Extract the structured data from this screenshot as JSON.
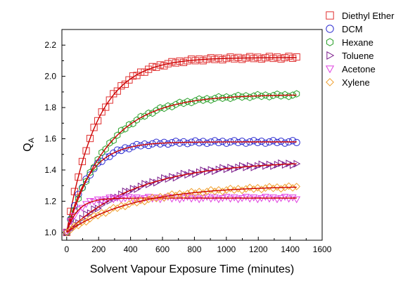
{
  "chart_data": {
    "type": "scatter",
    "xlabel": "Solvent Vapour Exposure Time (minutes)",
    "ylabel": "Q",
    "ylabel_sub": "A",
    "xlim": [
      -30,
      1600
    ],
    "ylim": [
      0.95,
      2.3
    ],
    "x_ticks": [
      0,
      200,
      400,
      600,
      800,
      1000,
      1200,
      1400,
      1600
    ],
    "y_ticks": [
      1.0,
      1.2,
      1.4,
      1.6,
      1.8,
      2.0,
      2.2
    ],
    "x_tick_labels": [
      "0",
      "200",
      "400",
      "600",
      "800",
      "1000",
      "1200",
      "1400",
      "1600"
    ],
    "y_tick_labels": [
      "1.0",
      "1.2",
      "1.4",
      "1.6",
      "1.8",
      "2.0",
      "2.2"
    ],
    "grid": false,
    "legend_position": "top-right-outside",
    "fit_color": "#cc0000",
    "series": [
      {
        "name": "Diethyl Ether",
        "marker": "square",
        "color": "#e03030",
        "y_end": 2.12,
        "tau": 190
      },
      {
        "name": "DCM",
        "marker": "circle",
        "color": "#2a2ad0",
        "y_end": 1.58,
        "tau": 140
      },
      {
        "name": "Hexane",
        "marker": "hexagon",
        "color": "#2aa02a",
        "y_end": 1.88,
        "tau": 260
      },
      {
        "name": "Toluene",
        "marker": "triangle-right",
        "color": "#7a1a8a",
        "y_end": 1.44,
        "tau": 450
      },
      {
        "name": "Acetone",
        "marker": "triangle-down",
        "color": "#e040e0",
        "y_end": 1.22,
        "tau": 70
      },
      {
        "name": "Xylene",
        "marker": "diamond",
        "color": "#f0a030",
        "y_end": 1.29,
        "tau": 420
      }
    ]
  }
}
